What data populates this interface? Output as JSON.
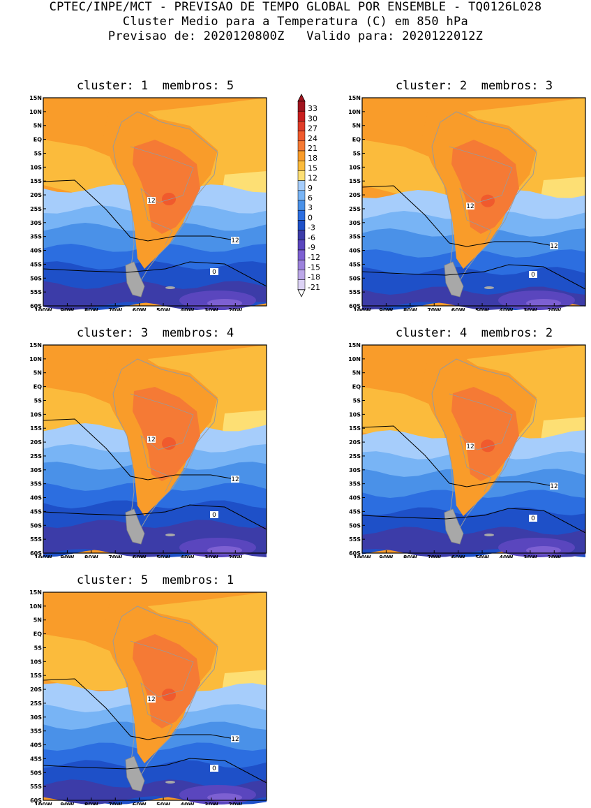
{
  "header": {
    "line1": "CPTEC/INPE/MCT - PREVISAO DE TEMPO GLOBAL POR ENSEMBLE - TQ0126L028",
    "line2": "Cluster Medio para a Temperatura (C) em 850 hPa",
    "line3": "Previsao de: 2020120800Z   Valido para: 2020122012Z"
  },
  "panels": [
    {
      "title": "cluster: 1  membros: 5"
    },
    {
      "title": "cluster: 2  membros: 3"
    },
    {
      "title": "cluster: 3  membros: 4"
    },
    {
      "title": "cluster: 4  membros: 2"
    },
    {
      "title": "cluster: 5  membros: 1"
    }
  ],
  "axes": {
    "lat_labels": [
      "15N",
      "10N",
      "5N",
      "EQ",
      "5S",
      "10S",
      "15S",
      "20S",
      "25S",
      "30S",
      "35S",
      "40S",
      "45S",
      "50S",
      "55S",
      "60S"
    ],
    "lon_labels": [
      "100W",
      "90W",
      "80W",
      "70W",
      "60W",
      "50W",
      "40W",
      "30W",
      "20W"
    ]
  },
  "colorbar": {
    "labels": [
      "33",
      "30",
      "27",
      "24",
      "21",
      "18",
      "15",
      "12",
      "9",
      "6",
      "3",
      "0",
      "-3",
      "-6",
      "-9",
      "-12",
      "-15",
      "-18",
      "-21"
    ],
    "colors": [
      "#a0141e",
      "#c81e1e",
      "#e03c28",
      "#f05a2d",
      "#f57a35",
      "#f99c2a",
      "#fbbb3c",
      "#fddf74",
      "#a6cdfb",
      "#78b4f5",
      "#4a91e8",
      "#2c6ee0",
      "#1e50c8",
      "#3c3ca8",
      "#5a46be",
      "#7d60d2",
      "#9c82dc",
      "#bca8e8",
      "#dcd2f5"
    ],
    "contour_labels": [
      "12",
      "0"
    ]
  },
  "map": {
    "ocean_warm": "#fbbb3c",
    "land_hot": "#f05a2d",
    "border_color": "#9a9a9a",
    "isoline_color": "#000000"
  }
}
